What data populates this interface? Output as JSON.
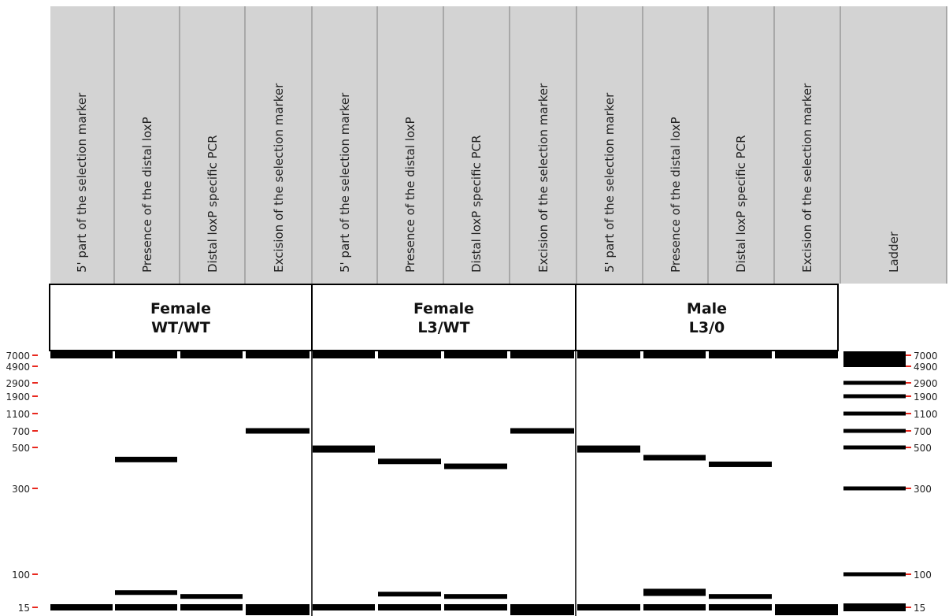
{
  "lanes": [
    "5' part of the selection marker",
    "Presence of the distal loxP",
    "Distal loxP specific PCR",
    "Excision of the selection marker",
    "5' part of the selection marker",
    "Presence of the distal loxP",
    "Distal loxP specific PCR",
    "Excision of the selection marker",
    "5' part of the selection marker",
    "Presence of the distal loxP",
    "Distal loxP specific PCR",
    "Excision of the selection marker",
    "Ladder"
  ],
  "groups": [
    {
      "line1": "Female",
      "line2": "WT/WT"
    },
    {
      "line1": "Female",
      "line2": "L3/WT"
    },
    {
      "line1": "Male",
      "line2": "L3/0"
    }
  ],
  "size_markers": [
    "7000",
    "4900",
    "2900",
    "1900",
    "1100",
    "700",
    "500",
    "300",
    "100",
    "15"
  ],
  "marker_color": "#e8281e",
  "chart_data": {
    "type": "gel",
    "unit": "bp",
    "scale": "log",
    "bands": [
      [
        {
          "size": 7000
        },
        {
          "size": 15
        }
      ],
      [
        {
          "size": 7000
        },
        {
          "size": 430
        },
        {
          "size": 35
        },
        {
          "size": 15
        }
      ],
      [
        {
          "size": 7000
        },
        {
          "size": 28
        },
        {
          "size": 15
        }
      ],
      [
        {
          "size": 7000
        },
        {
          "size": 700
        },
        {
          "size": 15
        },
        {
          "size": 12
        }
      ],
      [
        {
          "size": 7000
        },
        {
          "size": 490
        },
        {
          "size": 15
        }
      ],
      [
        {
          "size": 7000
        },
        {
          "size": 420
        },
        {
          "size": 32
        },
        {
          "size": 15
        }
      ],
      [
        {
          "size": 7000
        },
        {
          "size": 395
        },
        {
          "size": 28
        },
        {
          "size": 15
        }
      ],
      [
        {
          "size": 7000
        },
        {
          "size": 700
        },
        {
          "size": 15
        },
        {
          "size": 13
        }
      ],
      [
        {
          "size": 7000
        },
        {
          "size": 490
        },
        {
          "size": 15
        }
      ],
      [
        {
          "size": 7000
        },
        {
          "size": 440
        },
        {
          "size": 38
        },
        {
          "size": 33
        },
        {
          "size": 15
        }
      ],
      [
        {
          "size": 7000
        },
        {
          "size": 405
        },
        {
          "size": 28
        },
        {
          "size": 15
        }
      ],
      [
        {
          "size": 7000
        },
        {
          "size": 15
        },
        {
          "size": 12
        }
      ],
      [
        {
          "size": 7000
        },
        {
          "size": 4900
        },
        {
          "size": 2900
        },
        {
          "size": 1900
        },
        {
          "size": 1100
        },
        {
          "size": 700
        },
        {
          "size": 500
        },
        {
          "size": 300
        },
        {
          "size": 100
        },
        {
          "size": 15
        }
      ]
    ]
  }
}
